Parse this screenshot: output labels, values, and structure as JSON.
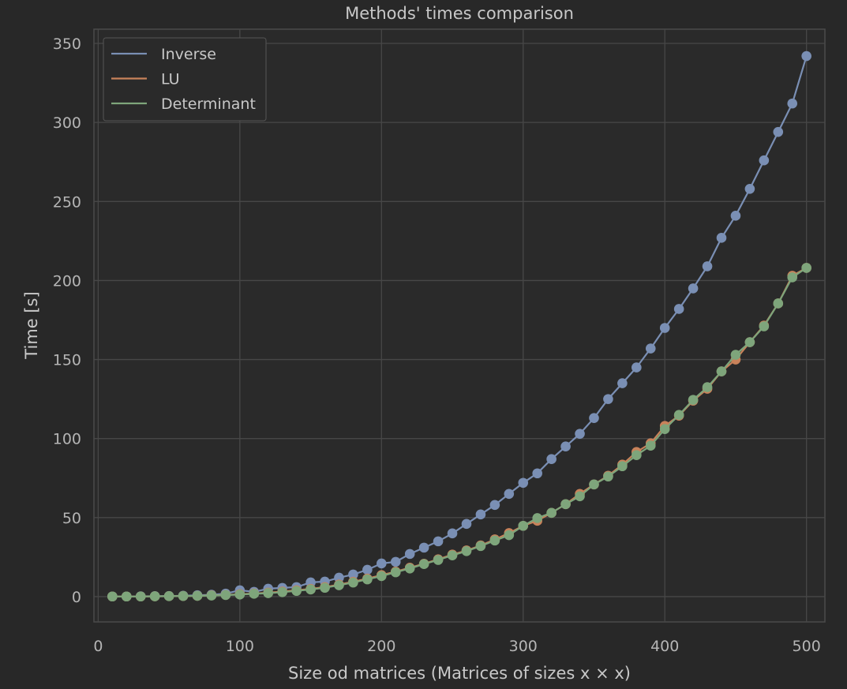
{
  "chart_data": {
    "type": "line",
    "title": "Methods' times comparison",
    "xlabel": "Size od matrices (Matrices of sizes x × x)",
    "ylabel": "Time [s]",
    "xlim": [
      -3,
      513
    ],
    "ylim": [
      -16,
      359
    ],
    "xticks": [
      0,
      100,
      200,
      300,
      400,
      500
    ],
    "yticks": [
      0,
      50,
      100,
      150,
      200,
      250,
      300,
      350
    ],
    "grid": true,
    "legend_position": "top-left",
    "x": [
      10,
      20,
      30,
      40,
      50,
      60,
      70,
      80,
      90,
      100,
      110,
      120,
      130,
      140,
      150,
      160,
      170,
      180,
      190,
      200,
      210,
      220,
      230,
      240,
      250,
      260,
      270,
      280,
      290,
      300,
      310,
      320,
      330,
      340,
      350,
      360,
      370,
      380,
      390,
      400,
      410,
      420,
      430,
      440,
      450,
      460,
      470,
      480,
      490,
      500
    ],
    "series": [
      {
        "name": "Inverse",
        "color": "#7a8fb4",
        "values": [
          0.1,
          0.1,
          0.2,
          0.3,
          0.4,
          0.6,
          0.9,
          1.2,
          1.9,
          4.0,
          3.0,
          5.0,
          5.5,
          6.0,
          9.0,
          9.5,
          12.0,
          14.0,
          17.0,
          21.0,
          22.0,
          27.0,
          31.0,
          35.0,
          40.0,
          46.0,
          52.0,
          58.0,
          65.0,
          72.0,
          78.0,
          87.0,
          95.0,
          103.0,
          113.0,
          125.0,
          135.0,
          145.0,
          157.0,
          170.0,
          182.0,
          195.0,
          209.0,
          227.0,
          241.0,
          258.0,
          276.0,
          294.0,
          312.0,
          342.0
        ]
      },
      {
        "name": "LU",
        "color": "#c8825a",
        "values": [
          0.1,
          0.1,
          0.1,
          0.2,
          0.3,
          0.4,
          0.5,
          0.8,
          1.1,
          1.6,
          2.0,
          2.5,
          3.2,
          4.0,
          4.9,
          6.0,
          7.6,
          9.4,
          11.4,
          13.6,
          15.8,
          18.3,
          20.8,
          23.6,
          26.6,
          29.2,
          32.4,
          36.2,
          40.2,
          44.8,
          48.0,
          53.0,
          58.5,
          65.0,
          71.0,
          76.5,
          83.5,
          91.5,
          97.0,
          108.0,
          114.5,
          124.0,
          131.5,
          142.5,
          150.0,
          161.0,
          171.5,
          185.5,
          203.0,
          208.0
        ]
      },
      {
        "name": "Determinant",
        "color": "#7ea57b",
        "values": [
          0.1,
          0.1,
          0.1,
          0.2,
          0.3,
          0.4,
          0.5,
          0.7,
          1.0,
          1.3,
          1.8,
          2.2,
          2.8,
          3.6,
          4.5,
          5.6,
          7.2,
          8.9,
          10.9,
          13.0,
          15.4,
          17.8,
          20.6,
          23.2,
          26.1,
          28.8,
          32.0,
          35.5,
          38.9,
          44.8,
          49.7,
          53.0,
          58.5,
          63.5,
          71.0,
          76.0,
          82.5,
          89.5,
          95.5,
          106.0,
          115.0,
          124.5,
          132.5,
          142.5,
          153.0,
          161.0,
          171.0,
          185.5,
          202.0,
          208.0
        ]
      }
    ]
  }
}
